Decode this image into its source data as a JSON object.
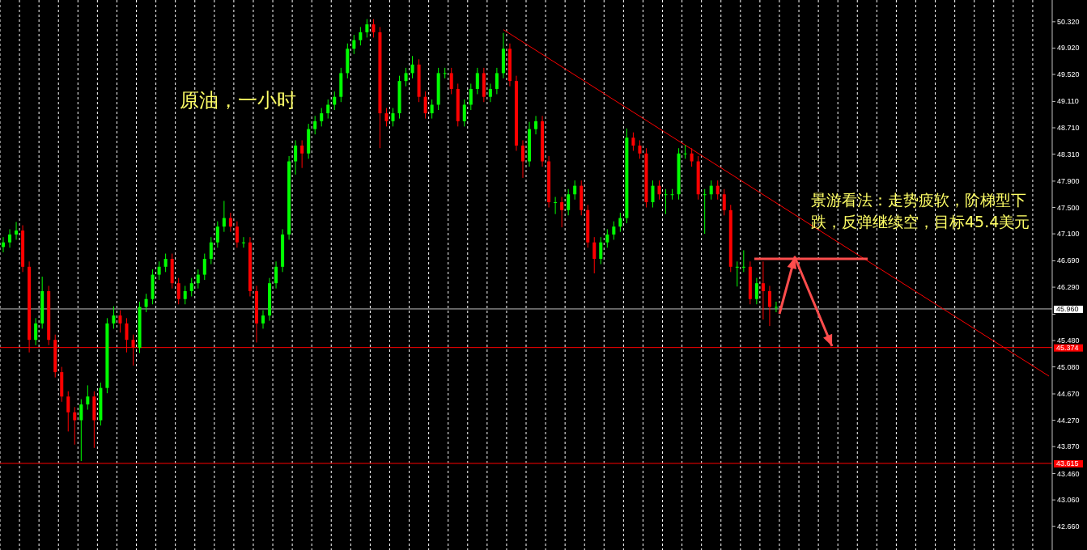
{
  "chart_data": {
    "type": "candlestick",
    "title": "原油，一小时",
    "annotations": [
      "景游看法：走势疲软，阶梯型下跌，反弹继续空，目标45.4美元"
    ],
    "colors": [
      "#00ff00",
      "#00ff00",
      "#00ff00",
      "#ff0000",
      "#ff0000",
      "#00ff00",
      "#00ff00",
      "#ff0000",
      "#ff0000",
      "#ff0000",
      "#ff0000",
      "#ff0000",
      "#00ff00",
      "#00ff00",
      "#ff0000",
      "#00ff00",
      "#00ff00",
      "#00ff00",
      "#ff0000",
      "#ff0000",
      "#ff0000",
      "#00ff00",
      "#00ff00",
      "#00ff00",
      "#00ff00",
      "#00ff00",
      "#ff0000",
      "#ff0000",
      "#00ff00",
      "#00ff00",
      "#00ff00",
      "#00ff00",
      "#00ff00",
      "#00ff00",
      "#00ff00",
      "#ff0000",
      "#ff0000",
      "#00ff00",
      "#ff0000",
      "#ff0000",
      "#00ff00",
      "#00ff00",
      "#00ff00",
      "#00ff00",
      "#00ff00",
      "#00ff00",
      "#ff0000",
      "#00ff00",
      "#00ff00",
      "#00ff00",
      "#00ff00",
      "#00ff00",
      "#00ff00",
      "#00ff00",
      "#00ff00",
      "#00ff00",
      "#00ff00",
      "#ff0000",
      "#ff0000",
      "#ff0000",
      "#00ff00",
      "#00ff00",
      "#00ff00",
      "#00ff00",
      "#ff0000",
      "#ff0000",
      "#00ff00",
      "#00ff00",
      "#00ff00",
      "#ff0000",
      "#ff0000",
      "#00ff00",
      "#00ff00",
      "#00ff00",
      "#ff0000",
      "#00ff00",
      "#00ff00",
      "#00ff00",
      "#ff0000",
      "#ff0000",
      "#ff0000",
      "#00ff00",
      "#00ff00",
      "#ff0000",
      "#ff0000",
      "#00ff00",
      "#ff0000",
      "#00ff00",
      "#00ff00",
      "#ff0000",
      "#ff0000",
      "#ff0000",
      "#00ff00",
      "#00ff00",
      "#00ff00",
      "#00ff00",
      "#00ff00",
      "#ff0000",
      "#ff0000",
      "#ff0000",
      "#00ff00",
      "#ff0000",
      "#00ff00",
      "#00ff00",
      "#00ff00",
      "#00ff00",
      "#ff0000",
      "#ff0000",
      "#00ff00",
      "#00ff00",
      "#ff0000",
      "#ff0000",
      "#ff0000",
      "#00ff00",
      "#00ff00",
      "#ff0000",
      "#00ff00",
      "#ff0000",
      "#ff0000",
      "#00ff00",
      null,
      null,
      null,
      null,
      null,
      null,
      null,
      null,
      null,
      null,
      null,
      null,
      null,
      null,
      null,
      null,
      null,
      null,
      null,
      null,
      null,
      null,
      null,
      null,
      null,
      null,
      null,
      null,
      null,
      null,
      null,
      null,
      null,
      null,
      null,
      null,
      null,
      null,
      null,
      null,
      null,
      null
    ],
    "categories": [
      null,
      null,
      null,
      null,
      null,
      null,
      null,
      null,
      null,
      null,
      null,
      null,
      null,
      null,
      null,
      null,
      null,
      null,
      null,
      null,
      null,
      null,
      null,
      null,
      null,
      null,
      null,
      null,
      null,
      null,
      null,
      null,
      null,
      null,
      null,
      null,
      null,
      null,
      null,
      null,
      null,
      null,
      null,
      null,
      null,
      null,
      null,
      null,
      null,
      null,
      null,
      null,
      null,
      null,
      null,
      null,
      null,
      null,
      null,
      null,
      null,
      null,
      null,
      null,
      null,
      null,
      null,
      null,
      null,
      null,
      null,
      null,
      null,
      null,
      null,
      null,
      null,
      null,
      null,
      null,
      null,
      null,
      null,
      null,
      null,
      null,
      null,
      null,
      null,
      null,
      null,
      null,
      null,
      null,
      null,
      null,
      null,
      null,
      null,
      null,
      null,
      null,
      null,
      null,
      null,
      null,
      null,
      null,
      null,
      null,
      null,
      null,
      null,
      null,
      null,
      null,
      null,
      null,
      null,
      null,
      null,
      null,
      null,
      null,
      null,
      null,
      null,
      null,
      null,
      null,
      null,
      null,
      null,
      null,
      null,
      null,
      null,
      null,
      null,
      null,
      null,
      null,
      null,
      null,
      null,
      null,
      null,
      null,
      null,
      null,
      null,
      null,
      null,
      null,
      null,
      null,
      null,
      null,
      null,
      null,
      null,
      null
    ],
    "ohlc": [
      [
        46.9,
        47.05,
        46.82,
        46.97
      ],
      [
        46.97,
        47.17,
        46.89,
        47.09
      ],
      [
        47.09,
        47.28,
        47.01,
        47.15
      ],
      [
        47.15,
        47.23,
        46.52,
        46.6
      ],
      [
        46.6,
        46.68,
        45.3,
        45.49
      ],
      [
        45.49,
        45.82,
        45.41,
        45.74
      ],
      [
        45.74,
        46.45,
        45.66,
        46.23
      ],
      [
        46.23,
        46.31,
        45.41,
        45.49
      ],
      [
        45.49,
        45.57,
        44.92,
        45.0
      ],
      [
        45.0,
        45.08,
        44.55,
        44.63
      ],
      [
        44.63,
        44.71,
        44.1,
        44.39
      ],
      [
        44.39,
        44.47,
        43.9,
        44.27
      ],
      [
        44.27,
        44.59,
        43.65,
        44.51
      ],
      [
        44.51,
        44.8,
        44.43,
        44.63
      ],
      [
        44.63,
        44.71,
        43.85,
        44.27
      ],
      [
        44.27,
        44.84,
        44.19,
        44.76
      ],
      [
        44.76,
        45.82,
        44.68,
        45.74
      ],
      [
        45.74,
        46.0,
        45.66,
        45.86
      ],
      [
        45.86,
        45.94,
        45.6,
        45.74
      ],
      [
        45.74,
        45.82,
        45.3,
        45.49
      ],
      [
        45.49,
        45.57,
        45.1,
        45.37
      ],
      [
        45.37,
        46.07,
        45.29,
        45.99
      ],
      [
        45.99,
        46.19,
        45.91,
        46.11
      ],
      [
        46.11,
        46.56,
        46.03,
        46.48
      ],
      [
        46.48,
        46.68,
        46.4,
        46.6
      ],
      [
        46.6,
        46.8,
        46.52,
        46.72
      ],
      [
        46.72,
        46.8,
        46.27,
        46.35
      ],
      [
        46.35,
        46.43,
        46.03,
        46.11
      ],
      [
        46.11,
        46.31,
        46.03,
        46.23
      ],
      [
        46.23,
        46.43,
        46.15,
        46.35
      ],
      [
        46.35,
        46.56,
        46.27,
        46.48
      ],
      [
        46.48,
        46.8,
        46.4,
        46.72
      ],
      [
        46.72,
        47.05,
        46.64,
        46.97
      ],
      [
        46.97,
        47.29,
        46.89,
        47.21
      ],
      [
        47.21,
        47.6,
        47.13,
        47.34
      ],
      [
        47.34,
        47.42,
        47.13,
        47.21
      ],
      [
        47.21,
        47.29,
        46.89,
        46.97
      ],
      [
        46.97,
        47.05,
        46.89,
        46.97
      ],
      [
        46.97,
        47.05,
        46.15,
        46.23
      ],
      [
        46.23,
        46.31,
        45.45,
        45.74
      ],
      [
        45.74,
        45.94,
        45.66,
        45.86
      ],
      [
        45.86,
        46.43,
        45.78,
        46.35
      ],
      [
        46.35,
        46.68,
        46.27,
        46.6
      ],
      [
        46.6,
        47.17,
        46.52,
        47.09
      ],
      [
        47.09,
        48.28,
        47.01,
        48.2
      ],
      [
        48.2,
        48.52,
        48.0,
        48.44
      ],
      [
        48.44,
        48.52,
        48.1,
        48.32
      ],
      [
        48.32,
        48.77,
        48.24,
        48.69
      ],
      [
        48.69,
        48.89,
        48.61,
        48.81
      ],
      [
        48.81,
        49.01,
        48.73,
        48.93
      ],
      [
        48.93,
        49.14,
        48.85,
        49.06
      ],
      [
        49.06,
        49.26,
        48.98,
        49.18
      ],
      [
        49.18,
        49.62,
        49.1,
        49.54
      ],
      [
        49.54,
        49.99,
        49.46,
        49.91
      ],
      [
        49.91,
        50.12,
        49.83,
        50.04
      ],
      [
        50.04,
        50.24,
        49.96,
        50.16
      ],
      [
        50.16,
        50.36,
        50.08,
        50.28
      ],
      [
        50.28,
        50.36,
        50.08,
        50.16
      ],
      [
        50.16,
        50.24,
        48.4,
        48.93
      ],
      [
        48.93,
        49.01,
        48.73,
        48.81
      ],
      [
        48.81,
        49.01,
        48.73,
        48.93
      ],
      [
        48.93,
        49.5,
        48.85,
        49.42
      ],
      [
        49.42,
        49.62,
        49.34,
        49.54
      ],
      [
        49.54,
        49.8,
        49.46,
        49.67
      ],
      [
        49.67,
        49.75,
        49.1,
        49.18
      ],
      [
        49.18,
        49.26,
        48.85,
        48.93
      ],
      [
        48.93,
        49.14,
        48.85,
        49.06
      ],
      [
        49.06,
        49.62,
        48.98,
        49.54
      ],
      [
        49.54,
        49.62,
        49.46,
        49.54
      ],
      [
        49.54,
        49.62,
        49.22,
        49.3
      ],
      [
        49.3,
        49.38,
        48.73,
        48.81
      ],
      [
        48.81,
        49.14,
        48.73,
        49.06
      ],
      [
        49.06,
        49.38,
        48.98,
        49.3
      ],
      [
        49.3,
        49.62,
        49.22,
        49.54
      ],
      [
        49.54,
        49.62,
        49.1,
        49.18
      ],
      [
        49.18,
        49.38,
        49.1,
        49.3
      ],
      [
        49.3,
        49.62,
        49.22,
        49.54
      ],
      [
        49.54,
        50.15,
        49.46,
        49.91
      ],
      [
        49.91,
        49.99,
        49.34,
        49.42
      ],
      [
        49.42,
        49.5,
        48.36,
        48.44
      ],
      [
        48.44,
        48.52,
        47.95,
        48.2
      ],
      [
        48.2,
        48.8,
        48.12,
        48.69
      ],
      [
        48.69,
        48.89,
        48.61,
        48.81
      ],
      [
        48.81,
        48.89,
        48.12,
        48.2
      ],
      [
        48.2,
        48.28,
        47.5,
        47.58
      ],
      [
        47.58,
        47.66,
        47.4,
        47.58
      ],
      [
        47.58,
        47.66,
        47.2,
        47.46
      ],
      [
        47.46,
        47.78,
        47.38,
        47.7
      ],
      [
        47.7,
        47.91,
        47.62,
        47.83
      ],
      [
        47.83,
        47.91,
        47.38,
        47.46
      ],
      [
        47.46,
        47.54,
        46.89,
        46.97
      ],
      [
        46.97,
        47.05,
        46.5,
        46.72
      ],
      [
        46.72,
        47.05,
        46.64,
        46.97
      ],
      [
        46.97,
        47.17,
        46.89,
        47.09
      ],
      [
        47.09,
        47.29,
        47.01,
        47.21
      ],
      [
        47.21,
        47.42,
        47.13,
        47.34
      ],
      [
        47.34,
        48.7,
        47.26,
        48.56
      ],
      [
        48.56,
        48.64,
        48.36,
        48.44
      ],
      [
        48.44,
        48.52,
        48.24,
        48.32
      ],
      [
        48.32,
        48.4,
        47.5,
        47.58
      ],
      [
        47.58,
        47.91,
        47.5,
        47.83
      ],
      [
        47.83,
        47.91,
        47.62,
        47.7
      ],
      [
        47.7,
        47.78,
        47.4,
        47.7
      ],
      [
        47.7,
        47.78,
        47.62,
        47.7
      ],
      [
        47.7,
        48.4,
        47.62,
        48.32
      ],
      [
        48.32,
        48.45,
        48.24,
        48.32
      ],
      [
        48.32,
        48.4,
        48.12,
        48.2
      ],
      [
        48.2,
        48.28,
        47.62,
        47.7
      ],
      [
        47.7,
        47.78,
        47.1,
        47.7
      ],
      [
        47.7,
        47.91,
        47.62,
        47.83
      ],
      [
        47.83,
        47.91,
        47.62,
        47.7
      ],
      [
        47.7,
        47.78,
        47.38,
        47.46
      ],
      [
        47.46,
        47.54,
        46.52,
        46.6
      ],
      [
        46.6,
        46.68,
        46.3,
        46.6
      ],
      [
        46.6,
        46.85,
        46.52,
        46.6
      ],
      [
        46.6,
        46.68,
        46.03,
        46.11
      ],
      [
        46.11,
        46.43,
        46.03,
        46.35
      ],
      [
        46.35,
        46.68,
        45.8,
        46.23
      ],
      [
        46.23,
        46.31,
        45.7,
        45.99
      ],
      [
        45.99,
        46.07,
        45.91,
        45.99
      ],
      null,
      null,
      null,
      null,
      null,
      null,
      null,
      null,
      null,
      null,
      null,
      null,
      null,
      null,
      null,
      null,
      null,
      null,
      null,
      null,
      null,
      null,
      null,
      null,
      null,
      null,
      null,
      null,
      null,
      null,
      null,
      null,
      null,
      null,
      null,
      null,
      null,
      null,
      null,
      null,
      null,
      null
    ],
    "series": [
      {
        "type": "line",
        "color": "#ff0000",
        "values": [
          null,
          null,
          null,
          null,
          null,
          null,
          null,
          null,
          null,
          null,
          null,
          null,
          null,
          null,
          null,
          null,
          null,
          null,
          null,
          null,
          null,
          null,
          null,
          null,
          null,
          null,
          null,
          null,
          null,
          null,
          null,
          null,
          null,
          null,
          null,
          null,
          null,
          null,
          null,
          null,
          null,
          null,
          null,
          null,
          null,
          null,
          null,
          null,
          null,
          null,
          null,
          null,
          null,
          null,
          null,
          null,
          null,
          null,
          null,
          null,
          null,
          null,
          null,
          null,
          null,
          null,
          null,
          null,
          null,
          null,
          null,
          null,
          null,
          null,
          null,
          null,
          null,
          50.2,
          null,
          null,
          null,
          null,
          null,
          null,
          null,
          null,
          null,
          null,
          null,
          null,
          null,
          null,
          null,
          null,
          null,
          null,
          null,
          null,
          null,
          null,
          null,
          null,
          null,
          null,
          null,
          null,
          null,
          null,
          null,
          null,
          null,
          null,
          null,
          null,
          null,
          null,
          null,
          null,
          null,
          null,
          null,
          null,
          null,
          null,
          null,
          null,
          null,
          null,
          null,
          null,
          null,
          null,
          null,
          null,
          null,
          null,
          null,
          null,
          null,
          null,
          null,
          null,
          null,
          null,
          null,
          null,
          null,
          null,
          null,
          null,
          null,
          null,
          null,
          null,
          null,
          null,
          null,
          null,
          null,
          null,
          null,
          44.94
        ]
      }
    ],
    "ylim": [
      42.3,
      50.65
    ],
    "yticks": [
      {
        "value": 50.32,
        "label": "50.320"
      },
      {
        "value": 49.92,
        "label": "49.920"
      },
      {
        "value": 49.52,
        "label": "49.520"
      },
      {
        "value": 49.11,
        "label": "49.110"
      },
      {
        "value": 48.71,
        "label": "48.710"
      },
      {
        "value": 48.31,
        "label": "48.310"
      },
      {
        "value": 47.9,
        "label": "47.900"
      },
      {
        "value": 47.5,
        "label": "47.500"
      },
      {
        "value": 47.1,
        "label": "47.100"
      },
      {
        "value": 46.69,
        "label": "46.690"
      },
      {
        "value": 46.29,
        "label": "46.290"
      },
      {
        "value": 45.88,
        "label": null
      },
      {
        "value": 45.48,
        "label": "45.480"
      },
      {
        "value": 45.08,
        "label": "45.080"
      },
      {
        "value": 44.67,
        "label": "44.670"
      },
      {
        "value": 44.27,
        "label": "44.270"
      },
      {
        "value": 43.87,
        "label": "43.870"
      },
      {
        "value": 43.46,
        "label": "43.460"
      },
      {
        "value": 43.06,
        "label": "43.060"
      },
      {
        "value": 42.66,
        "label": "42.660"
      }
    ],
    "tick_labels": "y",
    "ref_lines": [
      {
        "axis": "y",
        "value": 45.96,
        "label": "45.960",
        "color": "#c0c0c0"
      },
      {
        "axis": "y",
        "value": 45.374,
        "label": "45.374",
        "color": "#ff0000"
      },
      {
        "axis": "y",
        "value": 43.615,
        "label": "43.615",
        "color": "#ff0000"
      }
    ]
  }
}
